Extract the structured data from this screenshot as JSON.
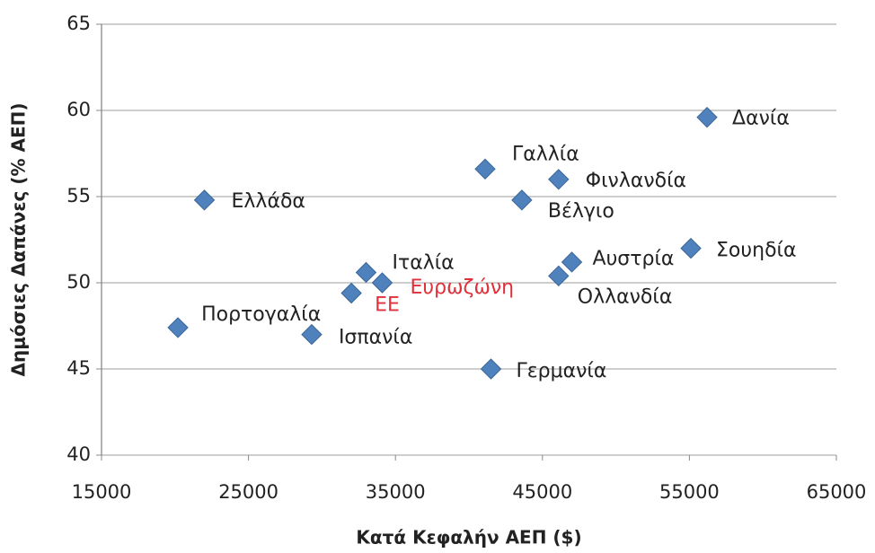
{
  "chart_data": {
    "type": "scatter",
    "xlabel": "Κατά Κεφαλήν ΑΕΠ ($)",
    "ylabel": "Δημόσιες Δαπάνες (% ΑΕΠ)",
    "labels": [
      "Δανία",
      "Γαλλία",
      "Φινλανδία",
      "Ελλάδα",
      "Βέλγιο",
      "Σουηδία",
      "Αυστρία",
      "Ιταλία",
      "Ευρωζώνη",
      "Ολλανδία",
      "ΕΕ",
      "Πορτογαλία",
      "Ισπανία",
      "Γερμανία"
    ],
    "x": [
      56200,
      41100,
      46100,
      22000,
      43600,
      55100,
      47000,
      33000,
      34100,
      46100,
      32000,
      20200,
      29300,
      41500
    ],
    "values": [
      59.6,
      56.6,
      56.0,
      54.8,
      54.8,
      52.0,
      51.2,
      50.6,
      50.0,
      50.4,
      49.4,
      47.4,
      47.0,
      45.0
    ],
    "label_colors": [
      "#222222",
      "#222222",
      "#222222",
      "#222222",
      "#222222",
      "#222222",
      "#222222",
      "#222222",
      "#e0303a",
      "#222222",
      "#e0303a",
      "#222222",
      "#222222",
      "#222222"
    ],
    "color": "#4f81bd",
    "xlim": [
      15000,
      65000
    ],
    "xticks": [
      15000,
      25000,
      35000,
      45000,
      55000,
      65000
    ],
    "ylim": [
      40,
      65
    ],
    "yticks": [
      40,
      45,
      50,
      55,
      60,
      65
    ],
    "grid": true
  }
}
